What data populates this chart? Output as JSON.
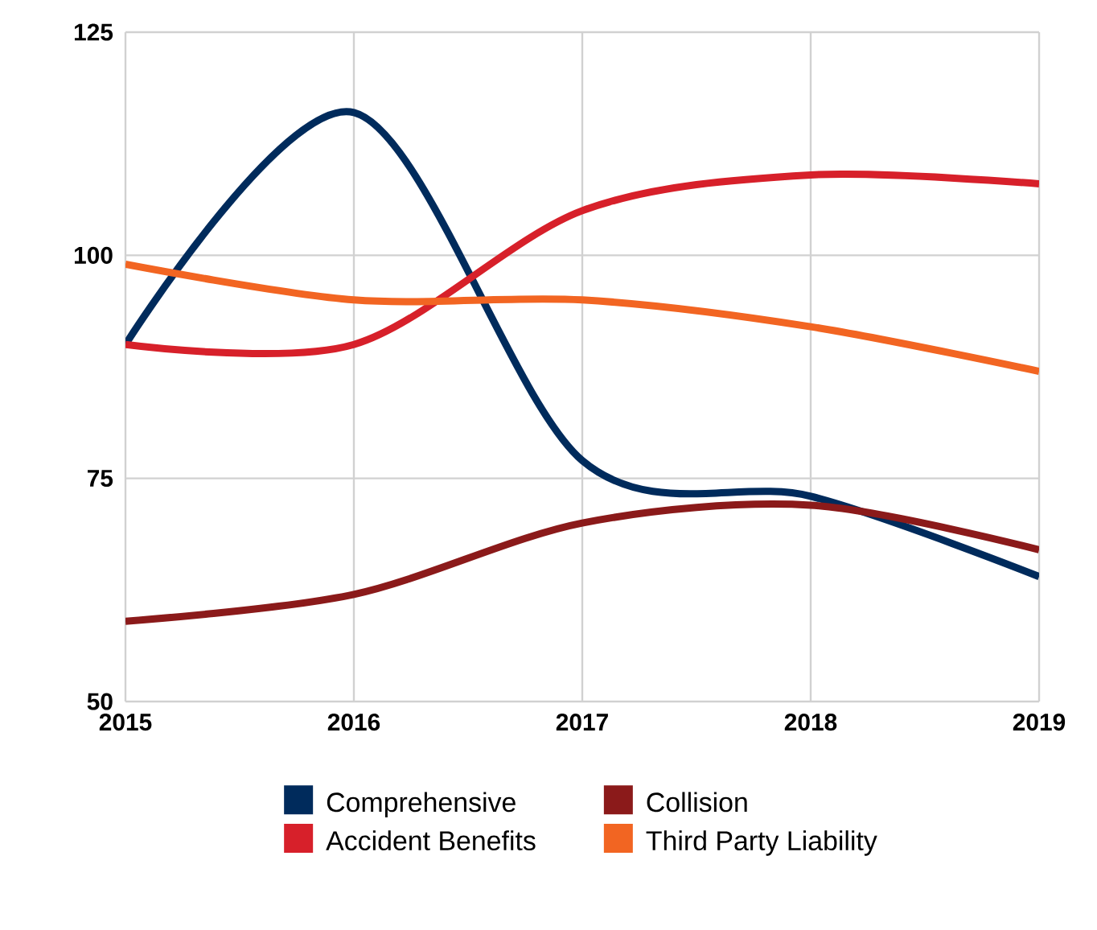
{
  "chart_data": {
    "type": "line",
    "x": [
      2015,
      2016,
      2017,
      2018,
      2019
    ],
    "series": [
      {
        "name": "Comprehensive",
        "color": "#002b5c",
        "values": [
          90,
          116,
          77,
          73,
          64
        ]
      },
      {
        "name": "Collision",
        "color": "#8b1a1a",
        "values": [
          59,
          62,
          70,
          72,
          67
        ]
      },
      {
        "name": "Accident Benefits",
        "color": "#d7202a",
        "values": [
          90,
          90,
          105,
          109,
          108
        ]
      },
      {
        "name": "Third Party Liability",
        "color": "#f26522",
        "values": [
          99,
          95,
          95,
          92,
          87
        ]
      }
    ],
    "xlim": [
      2015,
      2019
    ],
    "ylim": [
      50,
      125
    ],
    "xticks": [
      2015,
      2016,
      2017,
      2018,
      2019
    ],
    "yticks": [
      50,
      75,
      100,
      125
    ],
    "grid": true,
    "legend": "bottom",
    "line_style": "solid"
  }
}
